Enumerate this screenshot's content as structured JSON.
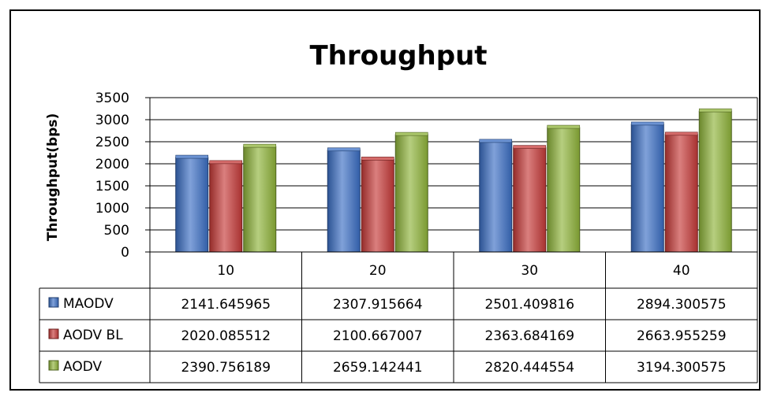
{
  "chart_data": {
    "type": "bar",
    "title": "Throughput",
    "xlabel": "",
    "ylabel": "Throughput(bps)",
    "categories": [
      "10",
      "20",
      "30",
      "40"
    ],
    "ylim": [
      0,
      3500
    ],
    "yticks": [
      "0",
      "500",
      "1000",
      "1500",
      "2000",
      "2500",
      "3000",
      "3500"
    ],
    "grid": true,
    "legend": "data-table",
    "series": [
      {
        "name": "MAODV",
        "color": "#3b6fc4",
        "values": [
          2141.645965,
          2307.915664,
          2501.409816,
          2894.300575
        ],
        "labels": [
          "2141.645965",
          "2307.915664",
          "2501.409816",
          "2894.300575"
        ]
      },
      {
        "name": "AODV BL",
        "color": "#c63a38",
        "values": [
          2020.085512,
          2100.667007,
          2363.684169,
          2663.955259
        ],
        "labels": [
          "2020.085512",
          "2100.667007",
          "2363.684169",
          "2663.955259"
        ]
      },
      {
        "name": "AODV",
        "color": "#8fb43a",
        "values": [
          2390.756189,
          2659.142441,
          2820.444554,
          3194.300575
        ],
        "labels": [
          "2390.756189",
          "2659.142441",
          "2820.444554",
          "3194.300575"
        ]
      }
    ]
  }
}
